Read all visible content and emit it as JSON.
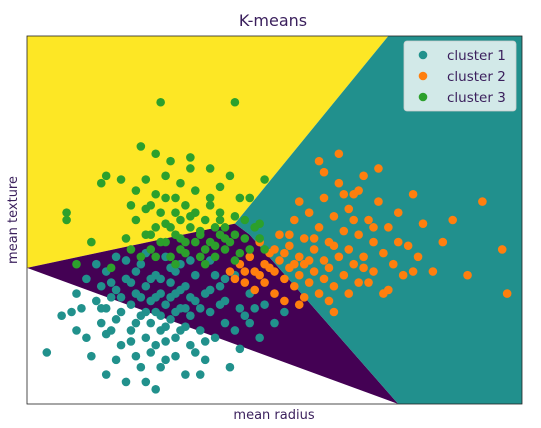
{
  "chart_data": {
    "type": "scatter",
    "title": "K-means",
    "xlabel": "mean radius",
    "ylabel": "mean texture",
    "ticks_visible": false,
    "grid": false,
    "xlim": [
      0,
      100
    ],
    "ylim": [
      0,
      100
    ],
    "legend": {
      "placement": "top-right",
      "entries": [
        "cluster 1",
        "cluster 2",
        "cluster 3"
      ]
    },
    "regions": [
      {
        "cluster": "cluster 3",
        "color": "#fde725",
        "polygon": [
          [
            0,
            0
          ],
          [
            0,
            100
          ],
          [
            73,
            100
          ],
          [
            42,
            49
          ],
          [
            0,
            37
          ]
        ]
      },
      {
        "cluster": "cluster 1",
        "color": "#440154",
        "polygon": [
          [
            0,
            37
          ],
          [
            42,
            49
          ],
          [
            45,
            46
          ],
          [
            75,
            0
          ]
        ]
      },
      {
        "cluster": "cluster 2",
        "color": "#21908d",
        "polygon": [
          [
            73,
            100
          ],
          [
            100,
            100
          ],
          [
            100,
            0
          ],
          [
            75,
            0
          ],
          [
            45,
            46
          ],
          [
            42,
            49
          ]
        ]
      }
    ],
    "series": [
      {
        "name": "cluster 1",
        "color": "#21918c",
        "points": [
          [
            4,
            14
          ],
          [
            7,
            24
          ],
          [
            9,
            25
          ],
          [
            10,
            30
          ],
          [
            10,
            20
          ],
          [
            11,
            26
          ],
          [
            12,
            34
          ],
          [
            12,
            18
          ],
          [
            13,
            13
          ],
          [
            14,
            28
          ],
          [
            14,
            38
          ],
          [
            15,
            22
          ],
          [
            15,
            32
          ],
          [
            16,
            26
          ],
          [
            16,
            8
          ],
          [
            16,
            36
          ],
          [
            17,
            29
          ],
          [
            17,
            20
          ],
          [
            18,
            12
          ],
          [
            18,
            40
          ],
          [
            18,
            31
          ],
          [
            19,
            25
          ],
          [
            19,
            16
          ],
          [
            20,
            34
          ],
          [
            20,
            6
          ],
          [
            21,
            27
          ],
          [
            21,
            20
          ],
          [
            22,
            36
          ],
          [
            22,
            30
          ],
          [
            22,
            13
          ],
          [
            23,
            24
          ],
          [
            23,
            38
          ],
          [
            24,
            18
          ],
          [
            24,
            32
          ],
          [
            24,
            6
          ],
          [
            25,
            28
          ],
          [
            25,
            22
          ],
          [
            25,
            14
          ],
          [
            26,
            35
          ],
          [
            26,
            25
          ],
          [
            27,
            30
          ],
          [
            27,
            20
          ],
          [
            27,
            10
          ],
          [
            28,
            40
          ],
          [
            28,
            27
          ],
          [
            28,
            17
          ],
          [
            29,
            33
          ],
          [
            29,
            23
          ],
          [
            30,
            30
          ],
          [
            30,
            13
          ],
          [
            30,
            36
          ],
          [
            31,
            20
          ],
          [
            31,
            26
          ],
          [
            32,
            32
          ],
          [
            32,
            8
          ],
          [
            33,
            24
          ],
          [
            33,
            16
          ],
          [
            34,
            35
          ],
          [
            34,
            28
          ],
          [
            35,
            20
          ],
          [
            36,
            30
          ],
          [
            36,
            12
          ],
          [
            37,
            25
          ],
          [
            37,
            39
          ],
          [
            38,
            18
          ],
          [
            39,
            32
          ],
          [
            40,
            22
          ],
          [
            40,
            28
          ],
          [
            41,
            10
          ],
          [
            42,
            20
          ],
          [
            42,
            35
          ],
          [
            43,
            26
          ],
          [
            43,
            15
          ],
          [
            45,
            30
          ],
          [
            45,
            22
          ],
          [
            47,
            18
          ],
          [
            48,
            27
          ],
          [
            50,
            22
          ],
          [
            52,
            25
          ],
          [
            26,
            4
          ],
          [
            21,
            17
          ],
          [
            23,
            29
          ],
          [
            26,
            16
          ],
          [
            29,
            37
          ],
          [
            32,
            21
          ],
          [
            35,
            26
          ],
          [
            19,
            29
          ],
          [
            24,
            41
          ],
          [
            31,
            38
          ],
          [
            38,
            35
          ],
          [
            16,
            19
          ],
          [
            27,
            34
          ],
          [
            33,
            29
          ],
          [
            22,
            22
          ],
          [
            28,
            12
          ],
          [
            20,
            39
          ],
          [
            36,
            17
          ],
          [
            30,
            25
          ],
          [
            25,
            34
          ],
          [
            34,
            14
          ],
          [
            18,
            23
          ],
          [
            23,
            10
          ],
          [
            40,
            34
          ],
          [
            44,
            24
          ],
          [
            29,
            29
          ],
          [
            37,
            31
          ],
          [
            26,
            29
          ],
          [
            32,
            26
          ],
          [
            24,
            25
          ],
          [
            35,
            8
          ],
          [
            17,
            33
          ],
          [
            21,
            33
          ],
          [
            27,
            24
          ],
          [
            31,
            31
          ],
          [
            39,
            27
          ],
          [
            33,
            39
          ],
          [
            28,
            21
          ],
          [
            30,
            18
          ],
          [
            46,
            26
          ],
          [
            15,
            26
          ]
        ]
      },
      {
        "name": "cluster 2",
        "color": "#ff7f0e",
        "points": [
          [
            41,
            36
          ],
          [
            42,
            34
          ],
          [
            43,
            38
          ],
          [
            44,
            33
          ],
          [
            45,
            40
          ],
          [
            46,
            36
          ],
          [
            46,
            31
          ],
          [
            47,
            44
          ],
          [
            48,
            38
          ],
          [
            48,
            33
          ],
          [
            49,
            41
          ],
          [
            50,
            36
          ],
          [
            50,
            30
          ],
          [
            51,
            46
          ],
          [
            51,
            39
          ],
          [
            52,
            34
          ],
          [
            52,
            28
          ],
          [
            53,
            43
          ],
          [
            53,
            37
          ],
          [
            54,
            32
          ],
          [
            54,
            50
          ],
          [
            55,
            40
          ],
          [
            55,
            35
          ],
          [
            55,
            27
          ],
          [
            56,
            45
          ],
          [
            56,
            38
          ],
          [
            57,
            33
          ],
          [
            57,
            52
          ],
          [
            58,
            42
          ],
          [
            58,
            36
          ],
          [
            59,
            30
          ],
          [
            59,
            48
          ],
          [
            60,
            39
          ],
          [
            60,
            34
          ],
          [
            60,
            56
          ],
          [
            61,
            44
          ],
          [
            61,
            37
          ],
          [
            62,
            51
          ],
          [
            62,
            32
          ],
          [
            62,
            25
          ],
          [
            63,
            40
          ],
          [
            63,
            60
          ],
          [
            64,
            47
          ],
          [
            64,
            35
          ],
          [
            65,
            53
          ],
          [
            65,
            42
          ],
          [
            66,
            38
          ],
          [
            66,
            57
          ],
          [
            67,
            46
          ],
          [
            67,
            33
          ],
          [
            68,
            62
          ],
          [
            68,
            40
          ],
          [
            69,
            50
          ],
          [
            70,
            36
          ],
          [
            70,
            44
          ],
          [
            71,
            55
          ],
          [
            72,
            41
          ],
          [
            72,
            30
          ],
          [
            73,
            48
          ],
          [
            74,
            38
          ],
          [
            75,
            52
          ],
          [
            76,
            35
          ],
          [
            77,
            43
          ],
          [
            78,
            57
          ],
          [
            79,
            40
          ],
          [
            80,
            49
          ],
          [
            82,
            36
          ],
          [
            84,
            44
          ],
          [
            86,
            50
          ],
          [
            89,
            35
          ],
          [
            92,
            55
          ],
          [
            96,
            42
          ],
          [
            97,
            30
          ],
          [
            55,
            55
          ],
          [
            59,
            66
          ],
          [
            63,
            68
          ],
          [
            60,
            63
          ],
          [
            67,
            58
          ],
          [
            66,
            50
          ],
          [
            71,
            64
          ],
          [
            64,
            57
          ],
          [
            58,
            45
          ],
          [
            52,
            41
          ],
          [
            49,
            37
          ],
          [
            47,
            35
          ],
          [
            44,
            36
          ],
          [
            53,
            46
          ],
          [
            56,
            29
          ],
          [
            61,
            28
          ],
          [
            65,
            30
          ],
          [
            69,
            33
          ],
          [
            73,
            31
          ],
          [
            57,
            39
          ],
          [
            62,
            43
          ],
          [
            68,
            37
          ],
          [
            70,
            48
          ],
          [
            75,
            44
          ],
          [
            78,
            36
          ],
          [
            54,
            38
          ],
          [
            50,
            42
          ]
        ]
      },
      {
        "name": "cluster 3",
        "color": "#2ca02c",
        "points": [
          [
            8,
            52
          ],
          [
            8,
            50
          ],
          [
            10,
            38
          ],
          [
            13,
            44
          ],
          [
            15,
            60
          ],
          [
            16,
            62
          ],
          [
            17,
            37
          ],
          [
            19,
            61
          ],
          [
            20,
            45
          ],
          [
            21,
            42
          ],
          [
            22,
            58
          ],
          [
            22,
            50
          ],
          [
            23,
            40
          ],
          [
            23,
            70
          ],
          [
            24,
            53
          ],
          [
            24,
            61
          ],
          [
            25,
            46
          ],
          [
            25,
            42
          ],
          [
            26,
            68
          ],
          [
            26,
            57
          ],
          [
            27,
            52
          ],
          [
            27,
            44
          ],
          [
            28,
            62
          ],
          [
            28,
            49
          ],
          [
            29,
            40
          ],
          [
            29,
            66
          ],
          [
            30,
            56
          ],
          [
            30,
            46
          ],
          [
            31,
            60
          ],
          [
            31,
            50
          ],
          [
            31,
            42
          ],
          [
            32,
            54
          ],
          [
            32,
            44
          ],
          [
            33,
            64
          ],
          [
            33,
            48
          ],
          [
            34,
            52
          ],
          [
            34,
            58
          ],
          [
            35,
            40
          ],
          [
            35,
            46
          ],
          [
            36,
            50
          ],
          [
            36,
            42
          ],
          [
            37,
            56
          ],
          [
            37,
            44
          ],
          [
            38,
            48
          ],
          [
            38,
            40
          ],
          [
            39,
            46
          ],
          [
            39,
            52
          ],
          [
            40,
            42
          ],
          [
            40,
            48
          ],
          [
            41,
            44
          ],
          [
            42,
            39
          ],
          [
            42,
            46
          ],
          [
            43,
            41
          ],
          [
            44,
            45
          ],
          [
            45,
            42
          ],
          [
            46,
            48
          ],
          [
            47,
            45
          ],
          [
            48,
            42
          ],
          [
            27,
            82
          ],
          [
            42,
            82
          ],
          [
            33,
            67
          ],
          [
            39,
            59
          ],
          [
            41,
            62
          ],
          [
            37,
            54
          ],
          [
            30,
            52
          ],
          [
            26,
            48
          ],
          [
            24,
            46
          ],
          [
            28,
            44
          ],
          [
            32,
            41
          ],
          [
            36,
            38
          ],
          [
            34,
            44
          ],
          [
            39,
            50
          ],
          [
            44,
            50
          ],
          [
            42,
            51
          ],
          [
            29,
            48
          ],
          [
            31,
            45
          ],
          [
            33,
            51
          ],
          [
            35,
            47
          ],
          [
            38,
            43
          ],
          [
            40,
            45
          ],
          [
            45,
            56
          ],
          [
            43,
            56
          ],
          [
            47,
            49
          ],
          [
            48,
            61
          ],
          [
            26,
            40
          ],
          [
            30,
            38
          ],
          [
            28,
            56
          ],
          [
            25,
            54
          ],
          [
            21,
            54
          ],
          [
            37,
            64
          ]
        ]
      }
    ]
  }
}
